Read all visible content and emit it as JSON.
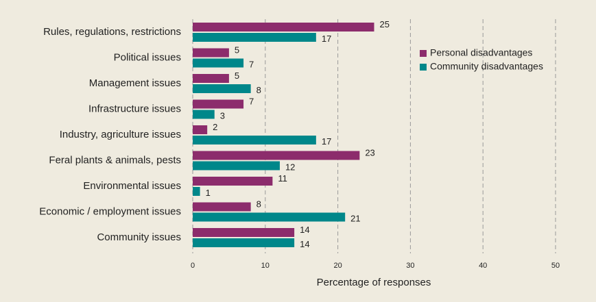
{
  "chart_data": {
    "type": "bar",
    "orientation": "horizontal",
    "categories": [
      "Rules, regulations, restrictions",
      "Political issues",
      "Management issues",
      "Infrastructure issues",
      "Industry, agriculture issues",
      "Feral plants & animals, pests",
      "Environmental issues",
      "Economic / employment issues",
      "Community issues"
    ],
    "series": [
      {
        "name": "Personal disadvantages",
        "color": "#8c2c6c",
        "values": [
          25,
          5,
          5,
          7,
          2,
          23,
          11,
          8,
          14
        ]
      },
      {
        "name": "Community disadvantages",
        "color": "#00878a",
        "values": [
          17,
          7,
          8,
          3,
          17,
          12,
          1,
          21,
          14
        ]
      }
    ],
    "xlabel": "Percentage of responses",
    "xlim": [
      0,
      50
    ],
    "xticks": [
      0,
      10,
      20,
      30,
      40,
      50
    ],
    "grid": true,
    "legend": "upper right"
  }
}
